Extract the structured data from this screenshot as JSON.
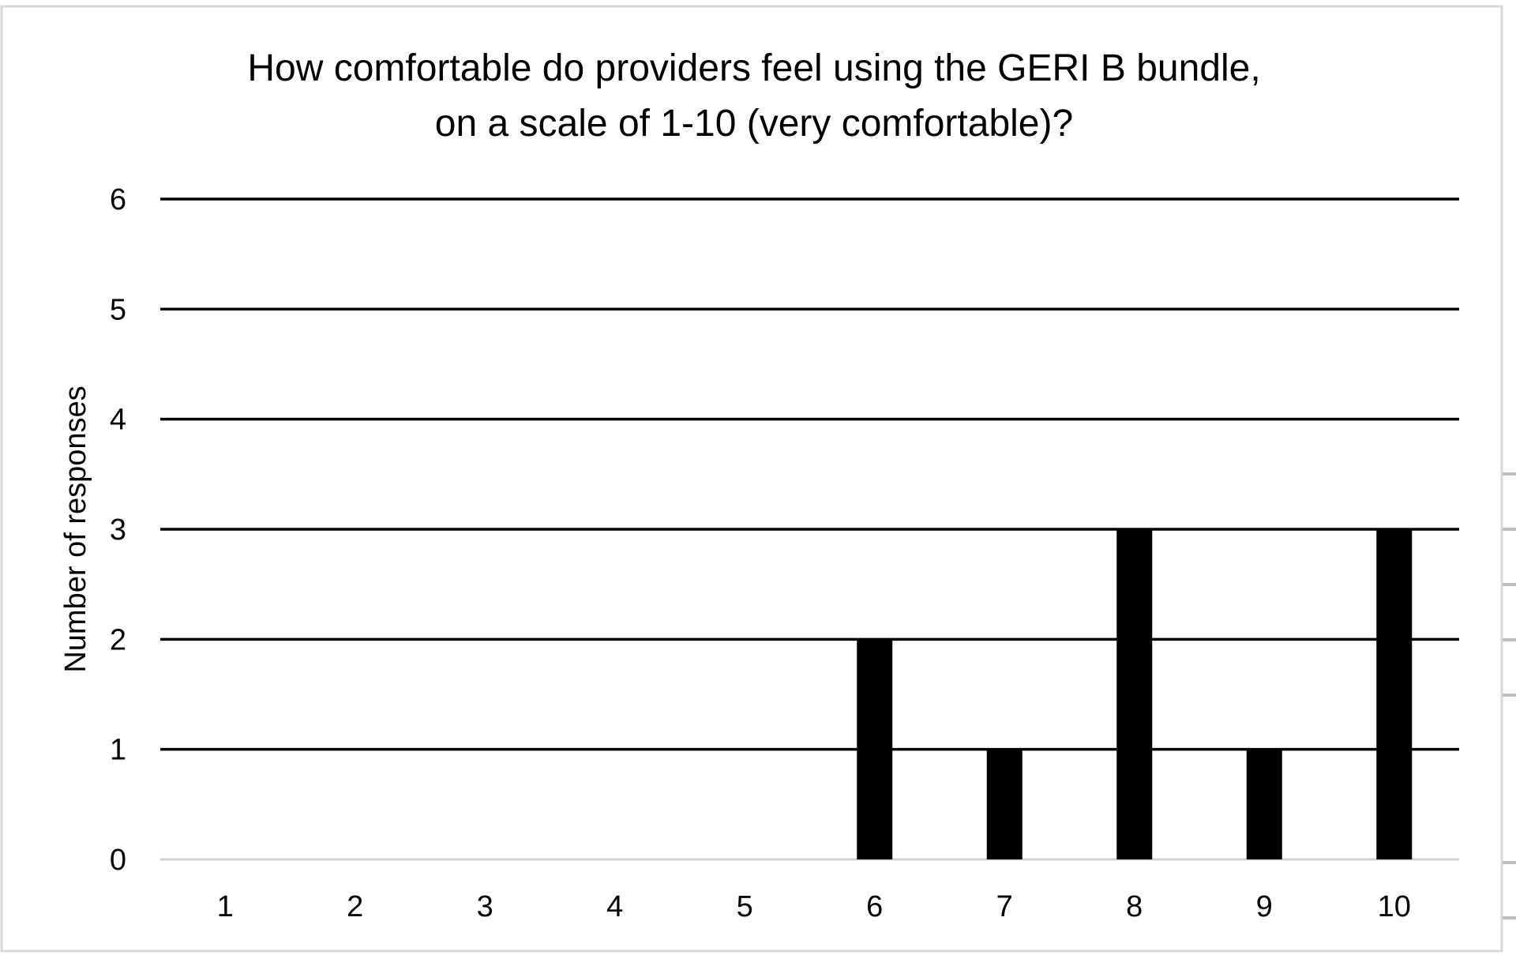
{
  "chart_data": {
    "type": "bar",
    "title_lines": [
      "How comfortable do providers feel using the GERI B bundle,",
      "on a scale of 1-10 (very comfortable)?"
    ],
    "xlabel": "",
    "ylabel": "Number of responses",
    "categories": [
      "1",
      "2",
      "3",
      "4",
      "5",
      "6",
      "7",
      "8",
      "9",
      "10"
    ],
    "values": [
      0,
      0,
      0,
      0,
      0,
      2,
      1,
      3,
      1,
      3
    ],
    "ylim": [
      0,
      6
    ],
    "yticks": [
      0,
      1,
      2,
      3,
      4,
      5,
      6
    ],
    "grid": true,
    "legend": "none",
    "bar_color": "#000000",
    "gridline_color": "#000000",
    "baseline_color": "#d0d0d0"
  }
}
